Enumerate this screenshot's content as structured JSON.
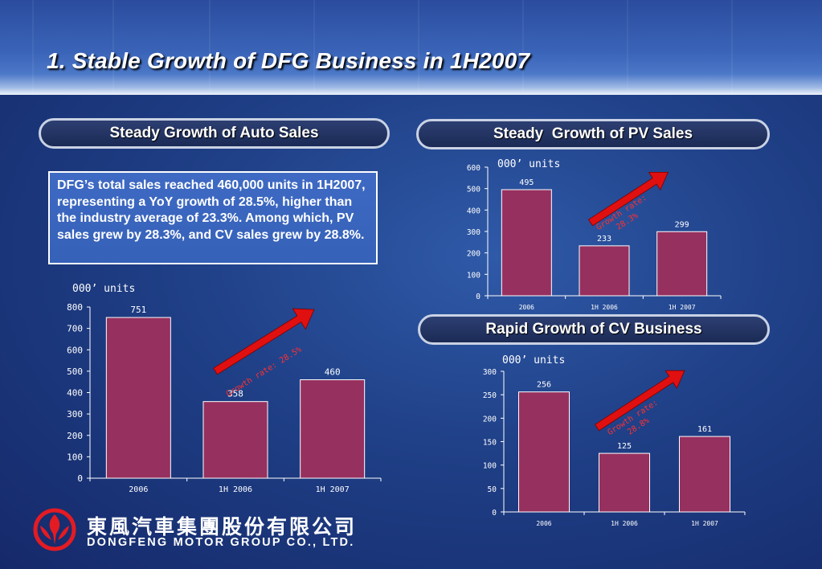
{
  "title": "1. Stable Growth of DFG Business in 1H2007",
  "panels": {
    "auto": {
      "heading": "Steady Growth of Auto Sales"
    },
    "pv": {
      "heading": "Steady  Growth of PV Sales"
    },
    "cv": {
      "heading": "Rapid Growth of CV Business"
    }
  },
  "summary": "DFG’s total sales reached 460,000 units in 1H2007, representing a YoY growth of 28.5%, higher than the industry average of 23.3%. Among which, PV sales grew by 28.3%, and CV sales grew by 28.8%.",
  "logo": {
    "chinese": "東風汽車集團股份有限公司",
    "english": "DONGFENG MOTOR GROUP CO., LTD."
  },
  "colors": {
    "bar": "#96305f",
    "arrow": "#e01010",
    "background": "#1f3f86",
    "text": "#ffffff"
  },
  "chart_data": [
    {
      "id": "auto",
      "type": "bar",
      "unit_label": "000’ units",
      "categories": [
        "2006",
        "1H 2006",
        "1H 2007"
      ],
      "values": [
        751,
        358,
        460
      ],
      "data_labels": [
        "751",
        "358",
        "460"
      ],
      "ylim": [
        0,
        800
      ],
      "yticks": [
        0,
        100,
        200,
        300,
        400,
        500,
        600,
        700,
        800
      ],
      "growth_annotation": [
        "Growth rate: 28.5%"
      ],
      "grid": false
    },
    {
      "id": "pv",
      "type": "bar",
      "unit_label": "000’ units",
      "categories": [
        "2006",
        "1H 2006",
        "1H 2007"
      ],
      "values": [
        495,
        233,
        299
      ],
      "data_labels": [
        "495",
        "233",
        "299"
      ],
      "ylim": [
        0,
        600
      ],
      "yticks": [
        0,
        100,
        200,
        300,
        400,
        500,
        600
      ],
      "growth_annotation": [
        "Growth rate:",
        "28.3%"
      ],
      "grid": false
    },
    {
      "id": "cv",
      "type": "bar",
      "unit_label": "000’ units",
      "categories": [
        "2006",
        "1H 2006",
        "1H 2007"
      ],
      "values": [
        256,
        125,
        161
      ],
      "data_labels": [
        "256",
        "125",
        "161"
      ],
      "ylim": [
        0,
        300
      ],
      "yticks": [
        0,
        50,
        100,
        150,
        200,
        250,
        300
      ],
      "growth_annotation": [
        "Growth rate:",
        "28.8%"
      ],
      "grid": false
    }
  ]
}
